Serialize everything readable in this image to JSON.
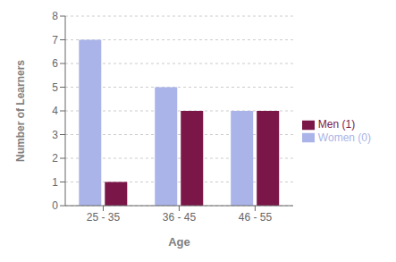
{
  "chart_data": {
    "type": "bar",
    "categories": [
      "25 - 35",
      "36 - 45",
      "46 - 55"
    ],
    "series": [
      {
        "name": "Women (0)",
        "color": "#aab4e8",
        "values": [
          7,
          5,
          4
        ]
      },
      {
        "name": "Men (1)",
        "color": "#7b1648",
        "values": [
          1,
          4,
          4
        ]
      }
    ],
    "xlabel": "Age",
    "ylabel": "Number of Learners",
    "ylim": [
      0,
      8
    ],
    "yticks": [
      0,
      1,
      2,
      3,
      4,
      5,
      6,
      7,
      8
    ],
    "grid": true,
    "legend": "right"
  }
}
